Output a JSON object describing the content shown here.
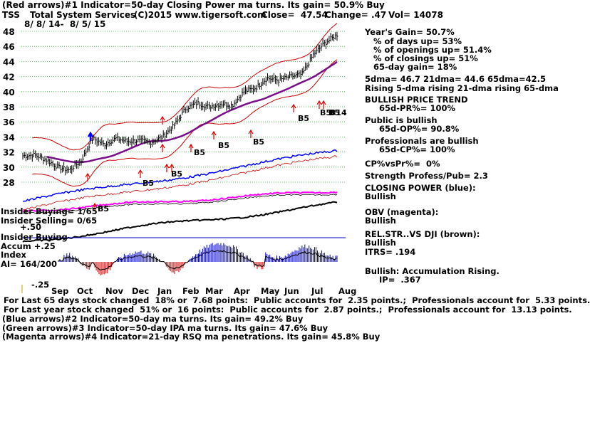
{
  "header": {
    "line1": "(Red arrows)#1 Indicator=50-day Closing Power ma turns. Its gain= 50.9% Buy",
    "symbol": "TSS",
    "company": "Total System Services",
    "copyright": "(C)2015 www.tigersoft.com",
    "close": "Close=  47.54",
    "change": "Change= .47",
    "volume": "Vol= 14078",
    "date_range": "8/ 8/ 14-  8/ 5/ 15"
  },
  "sidebar": [
    "Year's Gain= 50.7%",
    "   % of days up= 53%",
    "   % of openings up= 51.4%",
    "   % of closings up= 51%",
    "   65-day gain= 18%",
    "5dma= 46.7 21dma= 44.6 65dma=42.5",
    "Rising 5-dma rising 21-dma rising 65-dma",
    "BULLISH PRICE TREND",
    "     65d-PR%= 100%",
    "Public is bullish",
    "     65d-OP%= 90.8%",
    "Professionals are bullish",
    "     65d-CP%= 100%",
    "CP%vsPr%=  0%",
    "Strength Profess/Pub= 2.3",
    "CLOSING POWER (blue):",
    "Bullish",
    "OBV (magenta):",
    "Bullish",
    "REL.STR..VS DJI (brown):",
    "Bullish",
    "ITRS= .194",
    "Bullish: Accumulation Rising.",
    "     IP=  .367"
  ],
  "left_labels": {
    "insider_buying_count": "Insider Buying= 1/65",
    "insider_selling_count": "Insider Selling= 0/65",
    "plus50": "+.50",
    "insider_buying": "Insider Buying",
    "accum": "Accum +.25",
    "index": "Index",
    "ai": "AI= 164/200",
    "minus25": "-.25"
  },
  "footer": [
    "For Last 65 days stock changed  18% or  7.68 points:  Public accounts for  2.35 points.;  Professionals account for  5.33 points.",
    "For Last year stock changed  51% or  16 points:  Public accounts for  2.87 points.;  Professionals account for  13.13 points.",
    "(Blue arrows)#2 Indicator=50-day ma turns. Its gain= 49.2% Buy",
    "(Green arrows)#3 Indicator=50-day IPA ma turns. Its gain= 47.6% Buy",
    "(Magenta arrows)#4 Indicator=21-day RSQ ma penetrations. Its gain= 45.8% Buy"
  ],
  "colors": {
    "price": "#000000",
    "band": "#cc0000",
    "ma65": "#7a0f8a",
    "closing_power": "#0000ff",
    "obv": "#ff00ff",
    "rel_strength": "#000000",
    "grid": "#33aa33",
    "accum_pos": "#0000cc",
    "accum_neg": "#cc0000",
    "arrow_red": "#dd0000",
    "arrow_blue": "#0000ff"
  },
  "chart_data": {
    "type": "line",
    "title": "TSS Total System Services",
    "xlabel": "",
    "ylabel": "",
    "ylim": [
      28,
      48
    ],
    "grid": true,
    "y_ticks": [
      "48",
      "46",
      "44",
      "42",
      "40",
      "38",
      "36",
      "34",
      "32",
      "30",
      "28"
    ],
    "months": [
      "Sep",
      "Oct",
      "Nov",
      "Dec",
      "Jan",
      "Feb",
      "Mar",
      "Apr",
      "May",
      "Jun",
      "Jul",
      "Aug"
    ],
    "price_points": [
      [
        "Aug",
        31.5
      ],
      [
        "Sep",
        31.6
      ],
      [
        "Sep",
        31.0
      ],
      [
        "Oct",
        30.0
      ],
      [
        "Oct",
        29.6
      ],
      [
        "Oct",
        30.8
      ],
      [
        "Oct",
        33.8
      ],
      [
        "Nov",
        33.0
      ],
      [
        "Nov",
        33.8
      ],
      [
        "Dec",
        33.4
      ],
      [
        "Dec",
        33.5
      ],
      [
        "Dec",
        33.3
      ],
      [
        "Jan",
        34.0
      ],
      [
        "Jan",
        35.5
      ],
      [
        "Feb",
        37.8
      ],
      [
        "Feb",
        38.5
      ],
      [
        "Mar",
        38.0
      ],
      [
        "Mar",
        38.4
      ],
      [
        "Apr",
        38.2
      ],
      [
        "Apr",
        40.0
      ],
      [
        "May",
        40.5
      ],
      [
        "May",
        41.8
      ],
      [
        "Jun",
        41.5
      ],
      [
        "Jun",
        42.0
      ],
      [
        "Jul",
        42.3
      ],
      [
        "Jul",
        45.0
      ],
      [
        "Jul",
        46.5
      ],
      [
        "Aug",
        47.54
      ]
    ],
    "series": [
      {
        "name": "Price",
        "values": [
          31.5,
          31.6,
          31.0,
          30.0,
          29.6,
          30.8,
          33.8,
          33.0,
          33.8,
          33.4,
          33.5,
          33.3,
          34.0,
          35.5,
          37.8,
          38.5,
          38.0,
          38.4,
          38.2,
          40.0,
          40.5,
          41.8,
          41.5,
          42.0,
          42.3,
          45.0,
          46.5,
          47.54
        ]
      }
    ],
    "signals": [
      "B5",
      "B5",
      "B5",
      "B5",
      "B5",
      "B5",
      "B5",
      "B5",
      "B5",
      "B14"
    ]
  }
}
